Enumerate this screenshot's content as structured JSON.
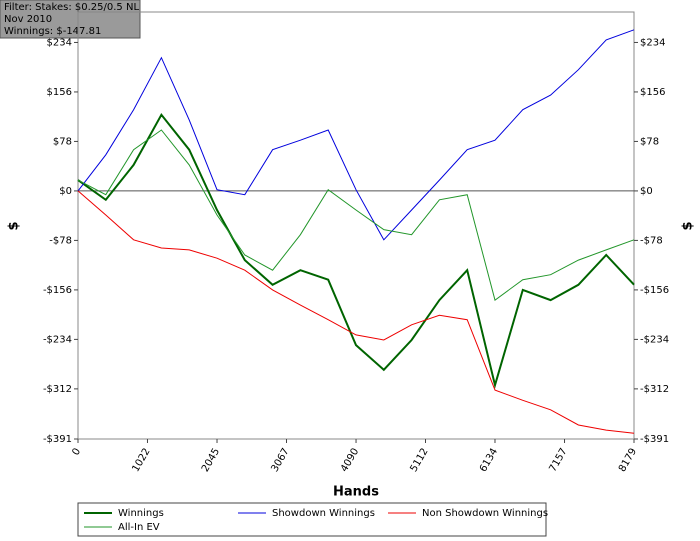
{
  "chart_data": {
    "type": "line",
    "annotations": [
      "Filter: Stakes: $0.25/0.5 NL",
      "Nov 2010",
      "Winnings: $-147.81"
    ],
    "x_label": "Hands",
    "y_label": "$",
    "x": [
      0,
      409,
      818,
      1227,
      1636,
      2045,
      2454,
      2863,
      3272,
      3681,
      4090,
      4499,
      4908,
      5317,
      5726,
      6134,
      6543,
      6952,
      7361,
      7770,
      8179
    ],
    "series": [
      {
        "name": "Winnings",
        "color": "#006400",
        "width": 2,
        "values": [
          17,
          -14,
          41,
          120,
          65,
          -30,
          -109,
          -148,
          -125,
          -140,
          -243,
          -282,
          -235,
          -172,
          -125,
          -306,
          -156,
          -172,
          -148,
          -101,
          -147.81
        ]
      },
      {
        "name": "Showdown Winnings",
        "color": "#0000dd",
        "width": 1,
        "values": [
          0,
          57,
          128,
          210,
          112,
          2,
          -6,
          65,
          80,
          96,
          2,
          -77,
          -30,
          17,
          65,
          80,
          128,
          151,
          191,
          238,
          254
        ]
      },
      {
        "name": "Non Showdown Winnings",
        "color": "#ee0000",
        "width": 1,
        "values": [
          0,
          -38,
          -77,
          -90,
          -93,
          -106,
          -125,
          -156,
          -180,
          -203,
          -227,
          -235,
          -211,
          -196,
          -203,
          -314,
          -330,
          -345,
          -369,
          -377,
          -382
        ]
      },
      {
        "name": "All-In EV",
        "color": "#22962a",
        "width": 1,
        "values": [
          17,
          -6,
          65,
          96,
          41,
          -38,
          -101,
          -125,
          -69,
          2,
          -30,
          -61,
          -69,
          -14,
          -6,
          -172,
          -140,
          -132,
          -109,
          -93,
          -77
        ]
      }
    ],
    "xlim": [
      0,
      8179
    ],
    "xticks": [
      0,
      1022,
      2045,
      3067,
      4090,
      5112,
      6134,
      7157,
      8179
    ],
    "ylim": [
      -391,
      282
    ],
    "yticks": [
      {
        "value": -391,
        "label": "-$391"
      },
      {
        "value": -312,
        "label": "-$312"
      },
      {
        "value": -234,
        "label": "-$234"
      },
      {
        "value": -156,
        "label": "-$156"
      },
      {
        "value": -78,
        "label": "-$78"
      },
      {
        "value": 0,
        "label": "$0"
      },
      {
        "value": 78,
        "label": "$78"
      },
      {
        "value": 156,
        "label": "$156"
      },
      {
        "value": 234,
        "label": "$234"
      }
    ],
    "zero_line": true
  }
}
